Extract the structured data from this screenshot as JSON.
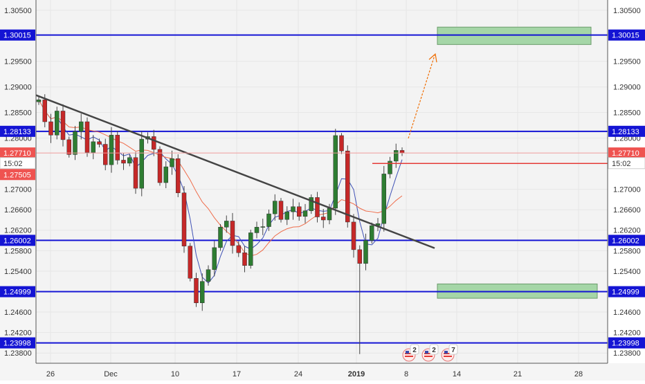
{
  "chart_data": {
    "type": "candlestick",
    "title": "",
    "symbol": "",
    "y_axis": {
      "tick_labels": [
        "1.30500",
        "1.29500",
        "1.29000",
        "1.28500",
        "1.28000",
        "1.27000",
        "1.26600",
        "1.26200",
        "1.25800",
        "1.25400",
        "1.24600",
        "1.24200",
        "1.23800"
      ],
      "ylim": [
        1.236,
        1.307
      ]
    },
    "x_axis": {
      "tick_labels": [
        {
          "label": "26",
          "bold": false
        },
        {
          "label": "Dec",
          "bold": false
        },
        {
          "label": "10",
          "bold": false
        },
        {
          "label": "17",
          "bold": false
        },
        {
          "label": "24",
          "bold": false
        },
        {
          "label": "2019",
          "bold": true
        },
        {
          "label": "8",
          "bold": false
        },
        {
          "label": "14",
          "bold": false
        },
        {
          "label": "21",
          "bold": false
        },
        {
          "label": "28",
          "bold": false
        }
      ]
    },
    "horizontal_levels": [
      {
        "label": "1.30015",
        "value": 1.30015,
        "color": "#1414d4"
      },
      {
        "label": "1.28133",
        "value": 1.28133,
        "color": "#1414d4"
      },
      {
        "label": "1.26002",
        "value": 1.26002,
        "color": "#1414d4"
      },
      {
        "label": "1.24999",
        "value": 1.24999,
        "color": "#1414d4"
      },
      {
        "label": "1.23998",
        "value": 1.23998,
        "color": "#1414d4"
      }
    ],
    "price_markers": [
      {
        "label": "1.27710",
        "value": 1.2771,
        "color": "#ef5350",
        "side": "both"
      },
      {
        "label": "15:02",
        "value": 1.27505,
        "color": "#ffffff",
        "side": "both"
      },
      {
        "label": "1.27505",
        "value": 1.27505,
        "color": "#ef5350",
        "side": "left"
      }
    ],
    "target_zones": [
      {
        "from": 1.2983,
        "to": 1.3017,
        "color": "#a5d6a7"
      },
      {
        "from": 1.2487,
        "to": 1.2515,
        "color": "#a5d6a7"
      }
    ],
    "trendline": {
      "from": 1.2884,
      "to": 1.2585,
      "color": "#444444"
    },
    "projection_arrow_color": "#ef6c00",
    "ohlc_seed": [
      1.2875,
      1.2832,
      1.2806,
      1.2853,
      1.2797,
      1.2768,
      1.2813,
      1.2832,
      1.2772,
      1.2793,
      1.2788,
      1.2748,
      1.2806,
      1.2757,
      1.2751,
      1.2762,
      1.2702,
      1.2798,
      1.2803,
      1.2778,
      1.2713,
      1.2744,
      1.276,
      1.2693,
      1.2589,
      1.2526,
      1.2478,
      1.252,
      1.2543,
      1.2586,
      1.2626,
      1.2638,
      1.259,
      1.2576,
      1.2551,
      1.2615,
      1.2626,
      1.2627,
      1.2652,
      1.2677,
      1.2641,
      1.2656,
      1.2666,
      1.2647,
      1.2658,
      1.2684,
      1.2646,
      1.264,
      1.2663,
      1.2805,
      1.2775,
      1.2636,
      1.2582,
      1.2555,
      1.26,
      1.2629,
      1.2633,
      1.273,
      1.2755,
      1.2776,
      1.2771
    ],
    "badges": [
      {
        "flag": "us",
        "count": "2"
      },
      {
        "flag": "us",
        "count": "2"
      },
      {
        "flag": "us",
        "count": "7"
      }
    ]
  }
}
